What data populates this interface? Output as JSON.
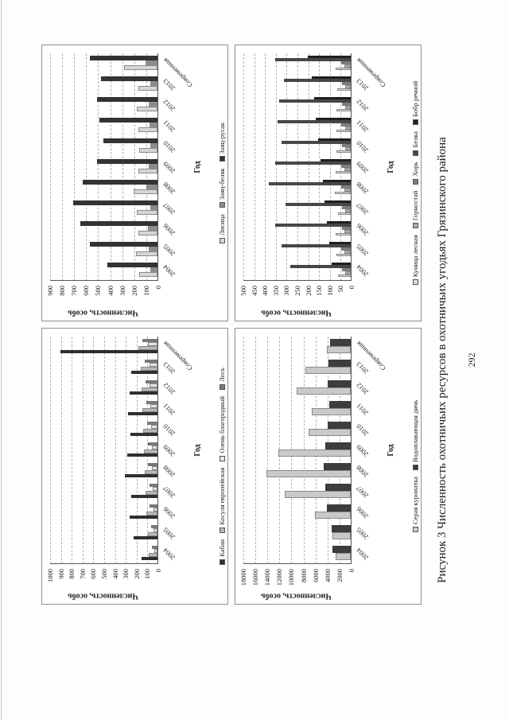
{
  "page": {
    "caption": "Рисунок 3 Численность охотничьих ресурсов в охотничьих угодьях Грязинского района",
    "page_number": "292"
  },
  "chart_data": [
    {
      "type": "bar",
      "grid_position": "top-left",
      "title": "",
      "xlabel": "Год",
      "ylabel": "Численность, особь",
      "ylim": [
        0,
        1000
      ],
      "ytick_step": 100,
      "grid": "horizontal-dashed",
      "legend_position": "bottom",
      "categories": [
        "2004",
        "2005",
        "2006",
        "2007",
        "2008",
        "2009",
        "2010",
        "2011",
        "2012",
        "2013",
        "Современная"
      ],
      "series": [
        {
          "name": "Кабан",
          "color": "#2f2f2f",
          "values": [
            150,
            220,
            260,
            240,
            300,
            280,
            250,
            270,
            260,
            240,
            900
          ]
        },
        {
          "name": "Косуля европейская",
          "color": "#b8b8b8",
          "values": [
            80,
            90,
            100,
            110,
            120,
            125,
            130,
            140,
            150,
            155,
            180
          ]
        },
        {
          "name": "Олень благородный",
          "color": "#e3e3e3",
          "values": [
            30,
            35,
            40,
            45,
            50,
            55,
            60,
            65,
            70,
            75,
            90
          ]
        },
        {
          "name": "Лось",
          "color": "#787878",
          "values": [
            50,
            60,
            70,
            75,
            85,
            90,
            95,
            105,
            110,
            120,
            140
          ]
        }
      ]
    },
    {
      "type": "bar",
      "grid_position": "top-right",
      "title": "",
      "xlabel": "Год",
      "ylabel": "Численность, особь",
      "ylim": [
        0,
        900
      ],
      "ytick_step": 100,
      "grid": "horizontal-dashed",
      "legend_position": "bottom",
      "categories": [
        "2004",
        "2005",
        "2006",
        "2007",
        "2008",
        "2009",
        "2010",
        "2011",
        "2012",
        "2013",
        "Современная"
      ],
      "series": [
        {
          "name": "Лисица",
          "color": "#d6d6d6",
          "values": [
            150,
            180,
            160,
            170,
            200,
            160,
            150,
            160,
            170,
            160,
            280
          ]
        },
        {
          "name": "Заяц-беляк",
          "color": "#8c8c8c",
          "values": [
            60,
            70,
            80,
            60,
            90,
            70,
            60,
            65,
            70,
            60,
            100
          ]
        },
        {
          "name": "Заяц-русак",
          "color": "#333333",
          "values": [
            420,
            560,
            640,
            700,
            620,
            500,
            450,
            480,
            500,
            470,
            560
          ]
        }
      ]
    },
    {
      "type": "bar",
      "grid_position": "bottom-left",
      "title": "",
      "xlabel": "Год",
      "ylabel": "Численность, особь",
      "ylim": [
        0,
        18000
      ],
      "ytick_step": 2000,
      "grid": "horizontal-dashed",
      "legend_position": "bottom",
      "categories": [
        "2004",
        "2005",
        "2006",
        "2007",
        "2008",
        "2009",
        "2010",
        "2011",
        "2012",
        "2013",
        "Современная"
      ],
      "series": [
        {
          "name": "Серая куропатка",
          "color": "#c9c9c9",
          "values": [
            2500,
            3000,
            6000,
            11000,
            14000,
            12000,
            7000,
            6500,
            9000,
            7500,
            4000
          ]
        },
        {
          "name": "Водоплавающая дичь",
          "color": "#3d3d3d",
          "values": [
            3000,
            3200,
            4000,
            4200,
            4500,
            4200,
            3800,
            3600,
            3900,
            3700,
            3500
          ]
        }
      ]
    },
    {
      "type": "bar",
      "grid_position": "bottom-right",
      "title": "",
      "xlabel": "Год",
      "ylabel": "Численность, особь",
      "ylim": [
        0,
        500
      ],
      "ytick_step": 50,
      "grid": "horizontal-dashed",
      "legend_position": "bottom",
      "categories": [
        "2004",
        "2005",
        "2006",
        "2007",
        "2008",
        "2009",
        "2010",
        "2011",
        "2012",
        "2013",
        "Современная"
      ],
      "series": [
        {
          "name": "Куница лесная",
          "color": "#d9d9d9",
          "values": [
            60,
            65,
            70,
            60,
            75,
            70,
            65,
            68,
            66,
            64,
            70
          ]
        },
        {
          "name": "Горностай",
          "color": "#ababab",
          "values": [
            25,
            30,
            28,
            25,
            30,
            28,
            26,
            27,
            25,
            24,
            30
          ]
        },
        {
          "name": "Хорь",
          "color": "#7d7d7d",
          "values": [
            40,
            45,
            42,
            40,
            45,
            44,
            42,
            43,
            41,
            40,
            45
          ]
        },
        {
          "name": "Белка",
          "color": "#474747",
          "values": [
            280,
            320,
            350,
            300,
            380,
            350,
            320,
            340,
            330,
            310,
            350
          ]
        },
        {
          "name": "Бобр речной",
          "color": "#1f1f1f",
          "values": [
            90,
            100,
            110,
            120,
            130,
            140,
            150,
            160,
            170,
            180,
            200
          ]
        }
      ]
    }
  ]
}
